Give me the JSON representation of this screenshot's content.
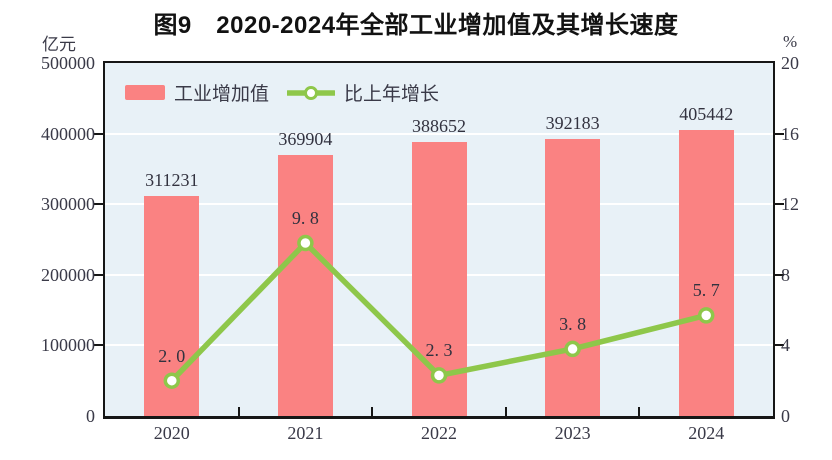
{
  "chart_data": {
    "type": "bar+line",
    "title": "图9　2020-2024年全部工业增加值及其增长速度",
    "categories": [
      "2020",
      "2021",
      "2022",
      "2023",
      "2024"
    ],
    "series": [
      {
        "name": "工业增加值",
        "type": "bar",
        "axis": "left",
        "unit": "亿元",
        "values": [
          311231,
          369904,
          388652,
          392183,
          405442
        ],
        "labels": [
          "311231",
          "369904",
          "388652",
          "392183",
          "405442"
        ],
        "color": "#FA8282"
      },
      {
        "name": "比上年增长",
        "type": "line",
        "axis": "right",
        "unit": "%",
        "values": [
          2.0,
          9.8,
          2.3,
          3.8,
          5.7
        ],
        "labels": [
          "2. 0",
          "9. 8",
          "2. 3",
          "3. 8",
          "5. 7"
        ],
        "color": "#8EC74A",
        "marker_fill": "#FFFFFF"
      }
    ],
    "left_axis": {
      "min": 0,
      "max": 500000,
      "step": 100000,
      "unit": "亿元",
      "ticks": [
        "0",
        "100000",
        "200000",
        "300000",
        "400000",
        "500000"
      ]
    },
    "right_axis": {
      "min": 0,
      "max": 20,
      "step": 4,
      "unit": "%",
      "ticks": [
        "0",
        "4",
        "8",
        "12",
        "16",
        "20"
      ]
    },
    "legend_position": "top-left-inside",
    "grid": "horizontal-white",
    "plot_bg": "#E8F1F7"
  }
}
